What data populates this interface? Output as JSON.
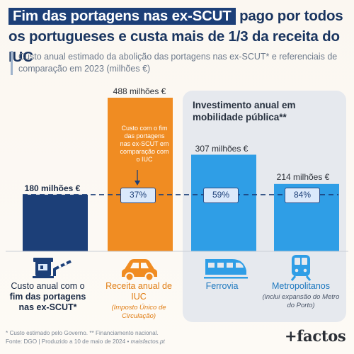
{
  "title": {
    "highlight": "Fim das portagens nas ex-SCUT",
    "rest": " pago por todos os portugueses e custa mais de 1/3 da receita do IUC"
  },
  "subtitle": "Custo anual estimado da abolição das portagens nas ex-SCUT* e referenciais de comparação em 2023 (milhões €)",
  "panel_title": "Investimento anual em mobilidade pública**",
  "annotation": "Custo com o fim das portagens nas ex-SCUT em comparação com o IUC",
  "colors": {
    "navy": "#1c3f78",
    "orange": "#f08c22",
    "blue": "#2f9ee6",
    "panel": "#e6e9ee",
    "dashed_line": "#1c3f78"
  },
  "chart_data": {
    "type": "bar",
    "categories": [
      "Custo anual com o fim das portagens nas ex-SCUT*",
      "Receita anual de IUC (Imposto Único de Circulação)",
      "Ferrovia",
      "Metropolitanos (inclui expansão do Metro do Porto)"
    ],
    "values": [
      180,
      488,
      307,
      214
    ],
    "value_labels": [
      "180 milhões €",
      "488 milhões €",
      "307 milhões €",
      "214 milhões €"
    ],
    "reference_line": 180,
    "percent_of_reference": [
      "37%",
      "59%",
      "84%"
    ],
    "ylim": [
      0,
      500
    ],
    "grid": false
  },
  "captions": [
    {
      "main_pre": "Custo anual com o ",
      "main_bold": "fim das portagens nas ex-SCUT*",
      "sub": "",
      "icon": "toll-booth-icon"
    },
    {
      "main_pre": "Receita anual de IUC",
      "main_bold": "",
      "sub": "(Imposto Único de Circulação)",
      "icon": "car-icon"
    },
    {
      "main_pre": "Ferrovia",
      "main_bold": "",
      "sub": "",
      "icon": "train-icon"
    },
    {
      "main_pre": "Metropolitanos",
      "main_bold": "",
      "sub": "(inclui expansão do Metro do Porto)",
      "icon": "metro-icon"
    }
  ],
  "footnotes": {
    "line1": "* Custo estimado pelo Governo. ** Financiamento nacional.",
    "line2_pre": "Fonte: DGO | Produzido a 10 de maio de 2024 • ",
    "line2_site": "maisfactos.pt"
  },
  "logo": "+factos"
}
